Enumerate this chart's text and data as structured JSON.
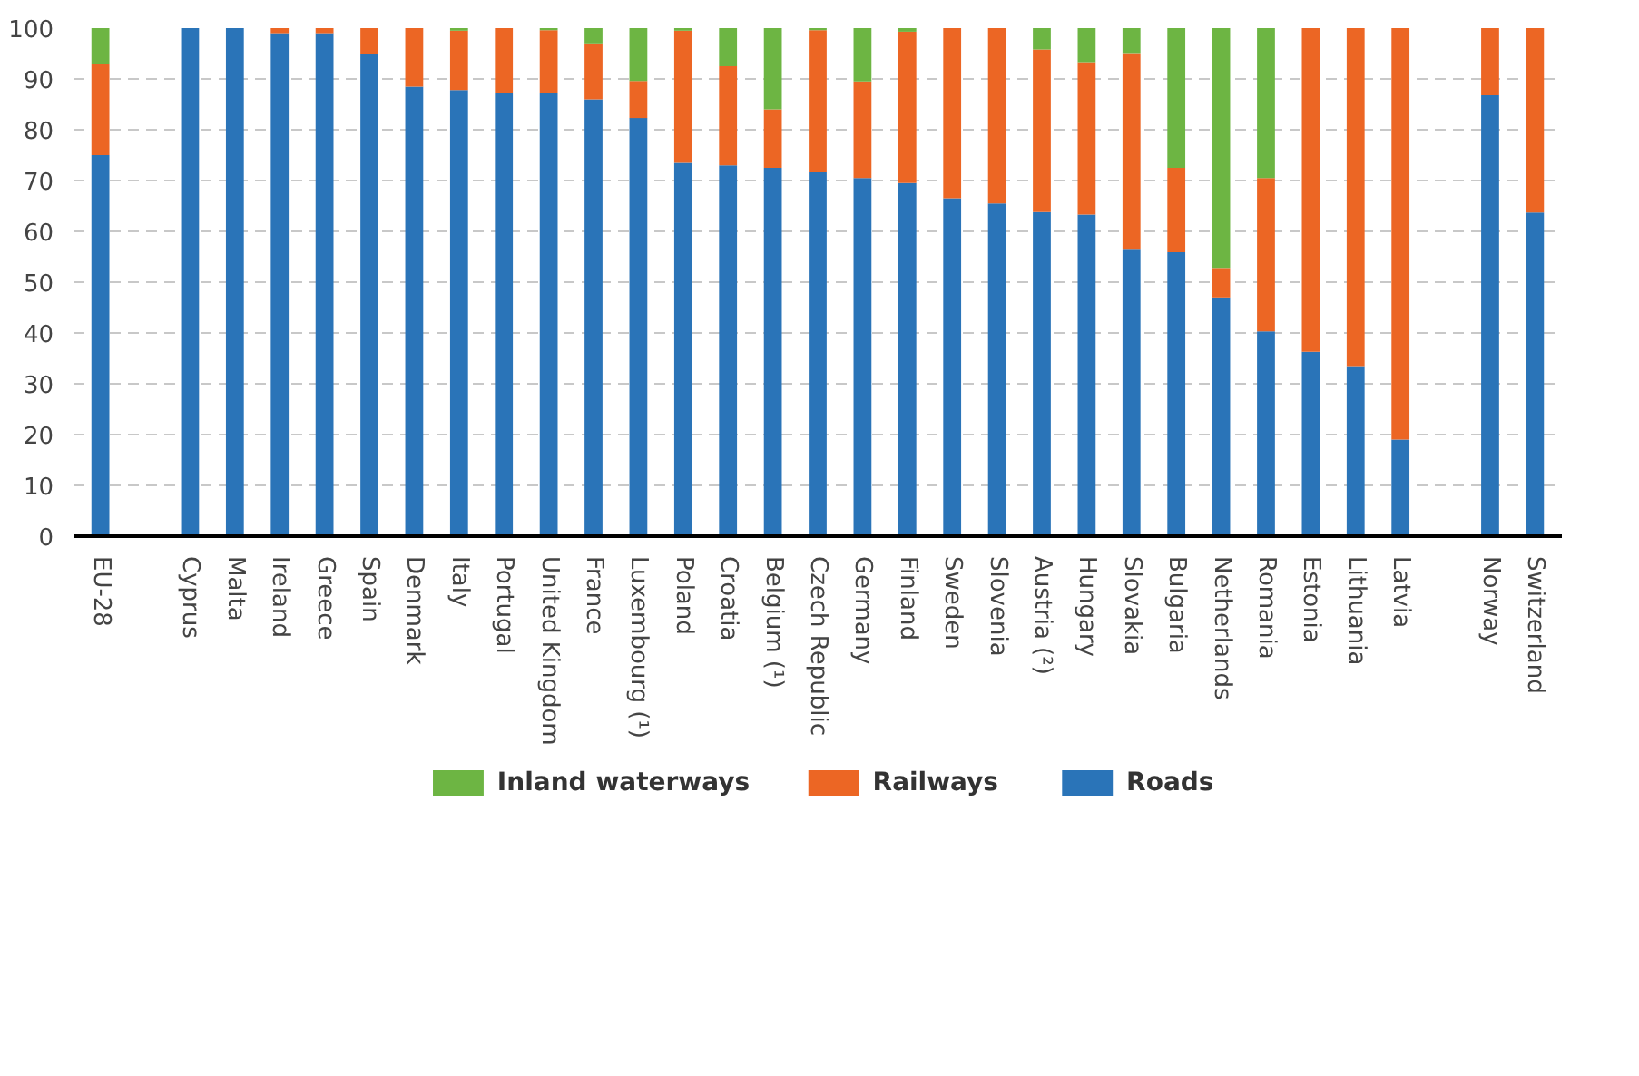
{
  "chart_data": {
    "type": "bar",
    "stacked": true,
    "categories": [
      "EU-28",
      null,
      "Cyprus",
      "Malta",
      "Ireland",
      "Greece",
      "Spain",
      "Denmark",
      "Italy",
      "Portugal",
      "United Kingdom",
      "France",
      "Luxembourg (¹)",
      "Poland",
      "Croatia",
      "Belgium (¹)",
      "Czech Republic",
      "Germany",
      "Finland",
      "Sweden",
      "Slovenia",
      "Austria (²)",
      "Hungary",
      "Slovakia",
      "Bulgaria",
      "Netherlands",
      "Romania",
      "Estonia",
      "Lithuania",
      "Latvia",
      null,
      "Norway",
      "Switzerland"
    ],
    "series": [
      {
        "name": "Roads",
        "color": "#2a74b8",
        "values": [
          75,
          null,
          100,
          100,
          99,
          99,
          95,
          88.5,
          87.8,
          87.2,
          87.2,
          86,
          82.3,
          73.5,
          73,
          72.5,
          71.6,
          70.5,
          69.5,
          66.5,
          65.5,
          63.8,
          63.3,
          56.4,
          55.9,
          47,
          40.3,
          36.3,
          33.5,
          19,
          null,
          86.8,
          63.7
        ]
      },
      {
        "name": "Railways",
        "color": "#ec6624",
        "values": [
          18,
          null,
          0,
          0,
          1,
          1,
          5,
          11.5,
          11.7,
          12.8,
          12.4,
          11,
          7.3,
          26,
          19.5,
          11.5,
          28,
          19,
          29.8,
          33.5,
          34.5,
          32,
          30,
          38.7,
          16.6,
          5.8,
          30.2,
          63.7,
          66.5,
          81,
          null,
          13.2,
          36.3
        ]
      },
      {
        "name": "Inland waterways",
        "color": "#6db543",
        "values": [
          7,
          null,
          0,
          0,
          0,
          0,
          0,
          0,
          0.5,
          0,
          0.4,
          3,
          10.4,
          0.5,
          7.5,
          16,
          0.4,
          10.5,
          0.7,
          0,
          0,
          4.2,
          6.7,
          4.9,
          27.5,
          47.2,
          29.5,
          0,
          0,
          0,
          null,
          0,
          0
        ]
      }
    ],
    "ylim": [
      0,
      100
    ],
    "yticks": [
      0,
      10,
      20,
      30,
      40,
      50,
      60,
      70,
      80,
      90,
      100
    ],
    "grid": "y",
    "legend": "bottom"
  }
}
